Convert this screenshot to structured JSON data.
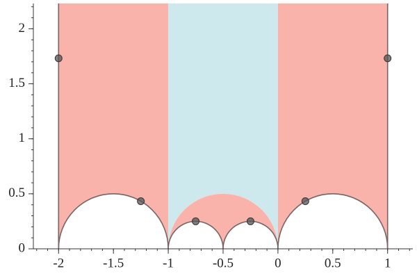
{
  "chart_data": {
    "type": "scatter",
    "x": [
      -2,
      1,
      -1.25,
      0.25,
      -0.75,
      -0.25
    ],
    "y": [
      1.732,
      1.732,
      0.433,
      0.433,
      0.25,
      0.25
    ],
    "color": "#555555",
    "xlim": [
      -2.23,
      1.23
    ],
    "ylim": [
      0,
      2.23
    ],
    "xticks": [
      -2,
      -1.5,
      -1,
      -0.5,
      0,
      0.5,
      1
    ],
    "yticks": [
      0,
      0.5,
      1,
      1.5,
      2
    ],
    "minor_step": 0.1,
    "edges": [
      -2,
      1
    ],
    "edge_color": "#7a6262",
    "regions": [
      {
        "color": "#fab3ab",
        "x": [
          -2,
          -1
        ],
        "floor": [
          [
            -1.5,
            0.5
          ]
        ],
        "ceiling": null,
        "outline": true
      },
      {
        "color": "#cde9ee",
        "x": [
          -1,
          0
        ],
        "floor": [
          [
            -0.5,
            0.5
          ]
        ],
        "ceiling": null,
        "outline": false
      },
      {
        "color": "#fab3ab",
        "x": [
          0,
          1
        ],
        "floor": [
          [
            0.5,
            0.5
          ]
        ],
        "ceiling": null,
        "outline": true
      },
      {
        "color": "#fab3ab",
        "x": [
          -1,
          0
        ],
        "floor": [
          [
            -0.75,
            0.25
          ],
          [
            -0.25,
            0.25
          ]
        ],
        "ceiling": [
          -0.5,
          0.5
        ],
        "outline": true
      }
    ]
  }
}
